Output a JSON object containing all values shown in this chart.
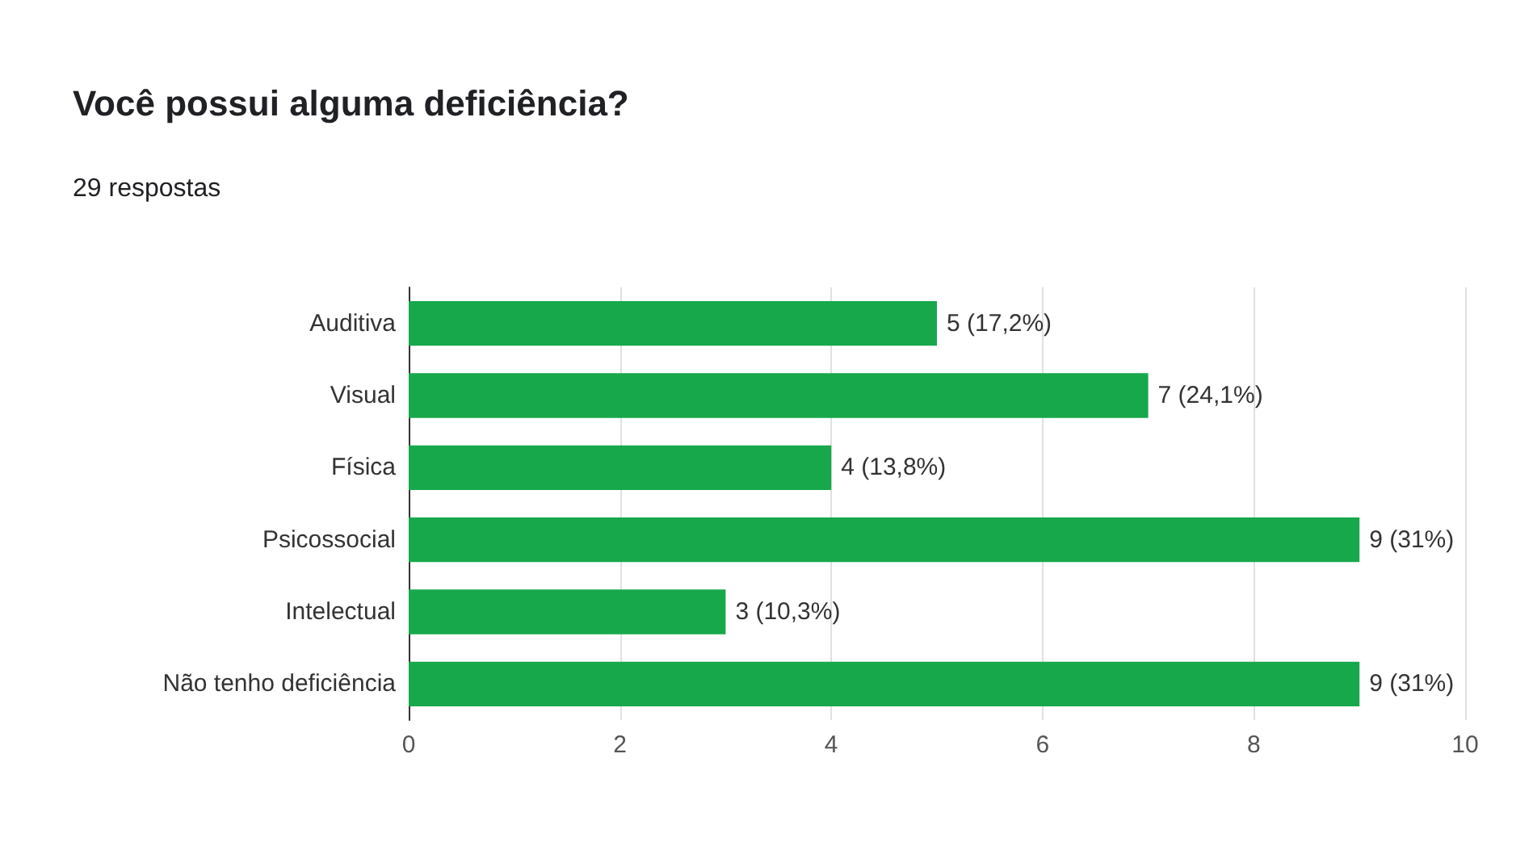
{
  "chart_data": {
    "type": "bar",
    "orientation": "horizontal",
    "title": "Você possui alguma deficiência?",
    "subtitle": "29 respostas",
    "categories": [
      "Auditiva",
      "Visual",
      "Física",
      "Psicossocial",
      "Intelectual",
      "Não tenho deficiência"
    ],
    "values": [
      5,
      7,
      4,
      9,
      3,
      9
    ],
    "value_labels": [
      "5 (17,2%)",
      "7 (24,1%)",
      "4 (13,8%)",
      "9 (31%)",
      "3 (10,3%)",
      "9 (31%)"
    ],
    "color": "#17a84b",
    "xlim": [
      0,
      10
    ],
    "xticks": [
      0,
      2,
      4,
      6,
      8,
      10
    ],
    "grid": "x"
  }
}
